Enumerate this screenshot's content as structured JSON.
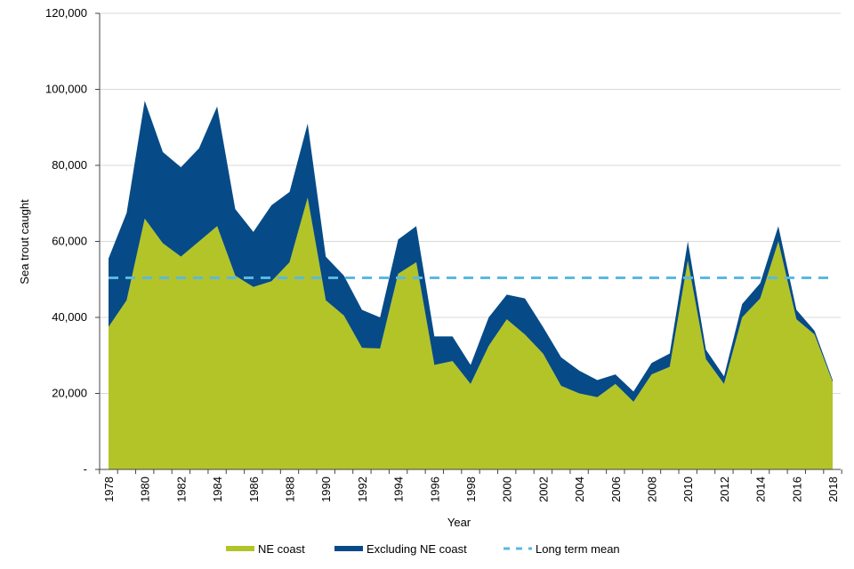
{
  "chart_data": {
    "type": "area",
    "stacked": true,
    "xlabel": "Year",
    "ylabel": "Sea trout caught",
    "ylim": [
      0,
      120000
    ],
    "yticks": [
      0,
      20000,
      40000,
      60000,
      80000,
      100000,
      120000
    ],
    "ytick_labels": [
      "-",
      "20,000",
      "40,000",
      "60,000",
      "80,000",
      "100,000",
      "120,000"
    ],
    "xlim": [
      1978,
      2018
    ],
    "xtick_labels": [
      "1978",
      "1980",
      "1982",
      "1984",
      "1986",
      "1988",
      "1990",
      "1992",
      "1994",
      "1996",
      "1998",
      "2000",
      "2002",
      "2004",
      "2006",
      "2008",
      "2010",
      "2012",
      "2014",
      "2016",
      "2018"
    ],
    "grid": "horizontal",
    "legend_position": "bottom",
    "x": [
      1978,
      1979,
      1980,
      1981,
      1982,
      1983,
      1984,
      1985,
      1986,
      1987,
      1988,
      1989,
      1990,
      1991,
      1992,
      1993,
      1994,
      1995,
      1996,
      1997,
      1998,
      1999,
      2000,
      2001,
      2002,
      2003,
      2004,
      2005,
      2006,
      2007,
      2008,
      2009,
      2010,
      2011,
      2012,
      2013,
      2014,
      2015,
      2016,
      2017,
      2018
    ],
    "series": [
      {
        "name": "NE coast",
        "color": "#b3c428",
        "values": [
          37500,
          44500,
          66000,
          59500,
          56000,
          60000,
          64000,
          51000,
          48000,
          49500,
          54500,
          71500,
          44500,
          40500,
          32000,
          31800,
          51500,
          54500,
          27500,
          28500,
          22500,
          32500,
          39500,
          35500,
          30500,
          22000,
          20000,
          19000,
          22500,
          17800,
          25000,
          27000,
          55000,
          29000,
          22500,
          40000,
          45000,
          60000,
          39500,
          35500,
          23000
        ]
      },
      {
        "name": "Excluding NE coast",
        "color": "#064b87",
        "values": [
          18000,
          23000,
          31000,
          24000,
          23500,
          24500,
          31500,
          17500,
          14500,
          20000,
          18500,
          19500,
          11500,
          10500,
          10000,
          8200,
          9000,
          9500,
          7500,
          6500,
          5000,
          7500,
          6500,
          9500,
          7000,
          7500,
          6000,
          4500,
          2500,
          2700,
          3000,
          3500,
          5000,
          2500,
          2000,
          3500,
          4000,
          4000,
          2500,
          1000,
          500
        ]
      }
    ],
    "reference_lines": [
      {
        "name": "Long term mean",
        "value": 50400,
        "color": "#5bb8e0",
        "style": "dashed"
      }
    ]
  }
}
